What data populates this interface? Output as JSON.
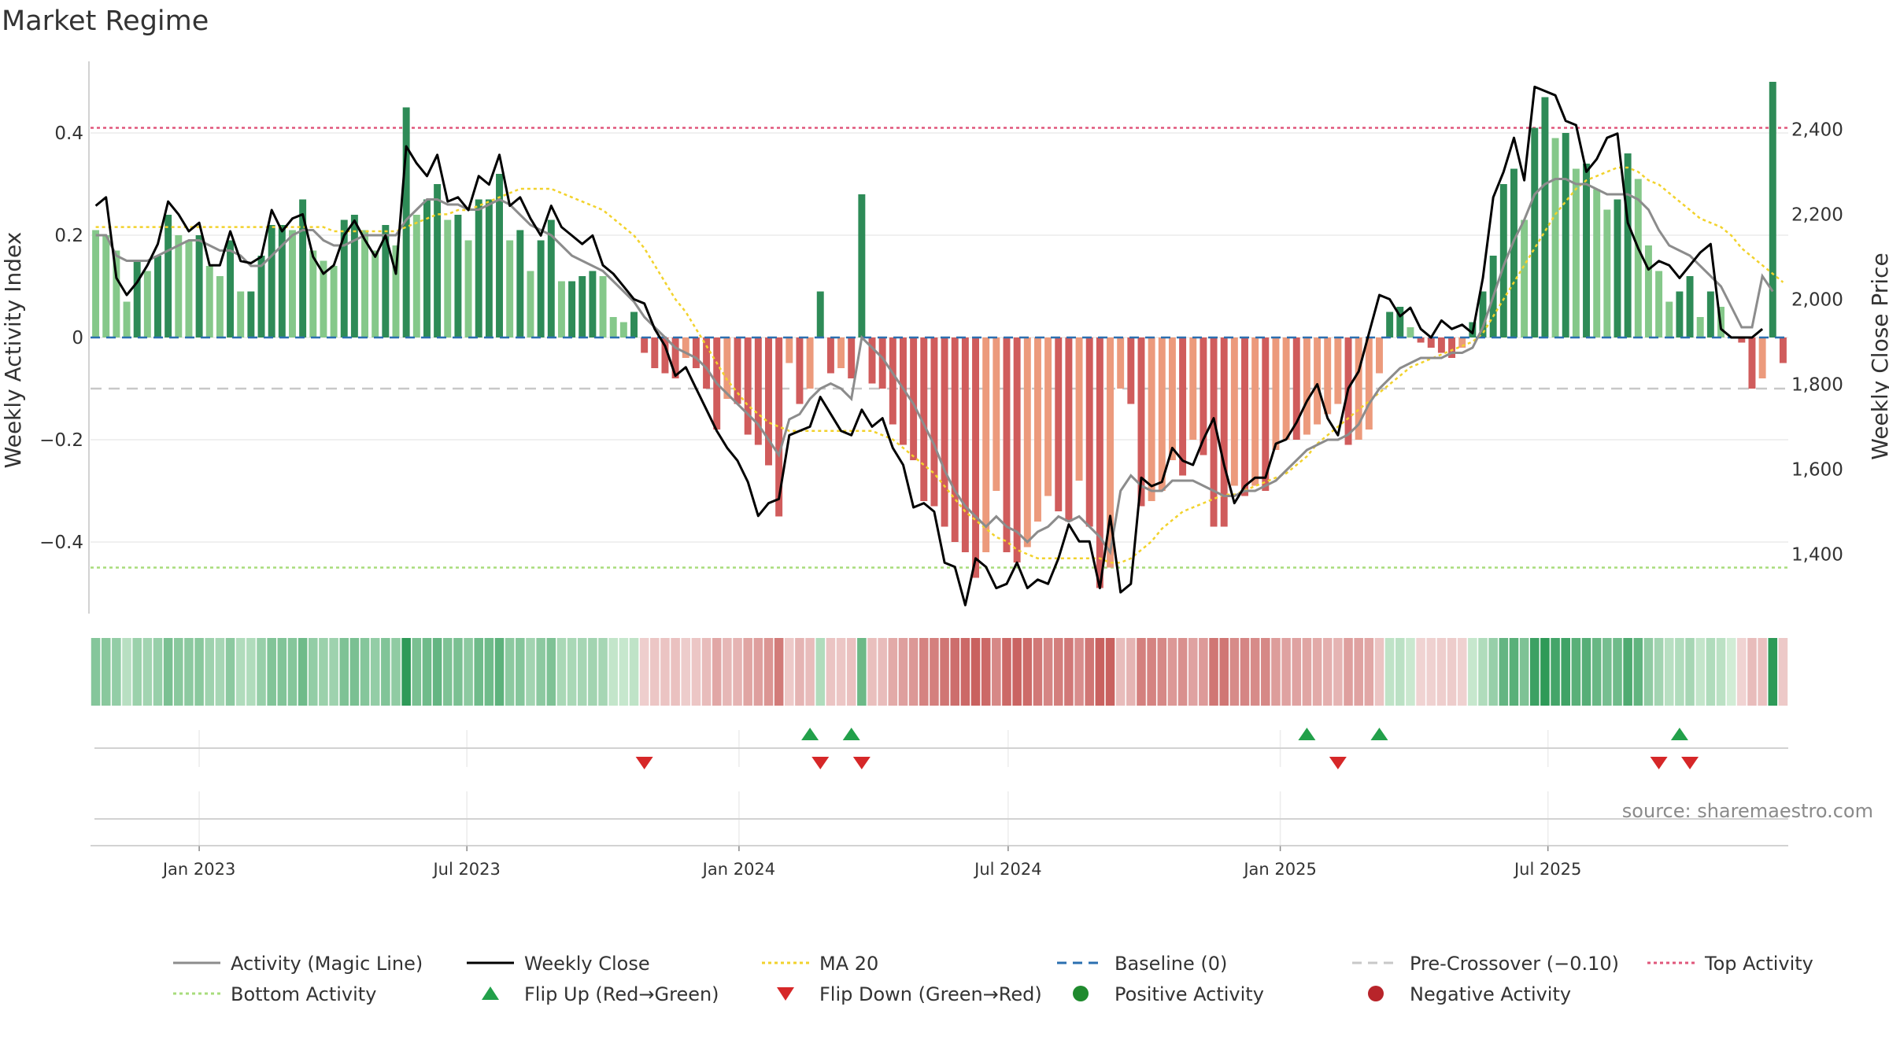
{
  "chart_data": {
    "type": "bar",
    "title": "Market Regime",
    "ylabel_left": "Weekly Activity Index",
    "ylabel_right": "Weekly Close Price",
    "ylim_left": [
      -0.54,
      0.54
    ],
    "ylim_right": [
      1260,
      2560
    ],
    "yticks_left": [
      {
        "v": 0.4,
        "label": "0.4"
      },
      {
        "v": 0.2,
        "label": "0.2"
      },
      {
        "v": 0,
        "label": "0"
      },
      {
        "v": -0.2,
        "label": "−0.2"
      },
      {
        "v": -0.4,
        "label": "−0.4"
      }
    ],
    "yticks_right": [
      {
        "v": 2400,
        "label": "2,400"
      },
      {
        "v": 2200,
        "label": "2,200"
      },
      {
        "v": 2000,
        "label": "2,000"
      },
      {
        "v": 1800,
        "label": "1,800"
      },
      {
        "v": 1600,
        "label": "1,600"
      },
      {
        "v": 1400,
        "label": "1,400"
      }
    ],
    "x_start": "2022-10-23",
    "x_step_days": 7,
    "xticks": [
      {
        "date": "2023-01-01",
        "label": "Jan 2023"
      },
      {
        "date": "2023-07-01",
        "label": "Jul 2023"
      },
      {
        "date": "2024-01-01",
        "label": "Jan 2024"
      },
      {
        "date": "2024-07-01",
        "label": "Jul 2024"
      },
      {
        "date": "2025-01-01",
        "label": "Jan 2025"
      },
      {
        "date": "2025-07-01",
        "label": "Jul 2025"
      }
    ],
    "thresholds": {
      "top": 0.41,
      "bottom": -0.45,
      "pre_crossover": -0.1,
      "baseline": 0
    },
    "activity": [
      0.21,
      0.2,
      0.17,
      0.07,
      0.15,
      0.13,
      0.16,
      0.24,
      0.2,
      0.19,
      0.2,
      0.14,
      0.12,
      0.19,
      0.09,
      0.09,
      0.16,
      0.22,
      0.22,
      0.21,
      0.27,
      0.17,
      0.15,
      0.14,
      0.23,
      0.24,
      0.21,
      0.17,
      0.22,
      0.18,
      0.45,
      0.24,
      0.27,
      0.3,
      0.23,
      0.24,
      0.19,
      0.27,
      0.27,
      0.32,
      0.19,
      0.21,
      0.13,
      0.19,
      0.23,
      0.11,
      0.11,
      0.12,
      0.13,
      0.12,
      0.04,
      0.03,
      0.05,
      -0.03,
      -0.06,
      -0.07,
      -0.08,
      -0.04,
      -0.06,
      -0.1,
      -0.18,
      -0.12,
      -0.13,
      -0.19,
      -0.21,
      -0.25,
      -0.35,
      -0.05,
      -0.13,
      -0.1,
      0.09,
      -0.07,
      -0.06,
      -0.08,
      0.28,
      -0.09,
      -0.1,
      -0.17,
      -0.21,
      -0.24,
      -0.32,
      -0.33,
      -0.37,
      -0.4,
      -0.42,
      -0.47,
      -0.42,
      -0.3,
      -0.42,
      -0.44,
      -0.41,
      -0.36,
      -0.31,
      -0.34,
      -0.36,
      -0.28,
      -0.37,
      -0.49,
      -0.45,
      -0.1,
      -0.13,
      -0.33,
      -0.32,
      -0.3,
      -0.24,
      -0.27,
      -0.2,
      -0.23,
      -0.37,
      -0.37,
      -0.29,
      -0.31,
      -0.29,
      -0.3,
      -0.22,
      -0.2,
      -0.2,
      -0.19,
      -0.17,
      -0.15,
      -0.13,
      -0.21,
      -0.2,
      -0.18,
      -0.07,
      0.05,
      0.06,
      0.02,
      -0.01,
      -0.02,
      -0.03,
      -0.04,
      -0.02,
      0.03,
      0.09,
      0.16,
      0.3,
      0.33,
      0.23,
      0.41,
      0.47,
      0.39,
      0.4,
      0.33,
      0.34,
      0.29,
      0.25,
      0.27,
      0.36,
      0.31,
      0.18,
      0.13,
      0.07,
      0.09,
      0.12,
      0.04,
      0.09,
      0.06,
      0.0,
      -0.01,
      -0.1,
      -0.08,
      0.5,
      -0.05
    ],
    "weekly_close": [
      2220,
      2240,
      2050,
      2010,
      2040,
      2080,
      2130,
      2230,
      2200,
      2160,
      2180,
      2080,
      2080,
      2160,
      2090,
      2085,
      2100,
      2210,
      2160,
      2190,
      2200,
      2100,
      2060,
      2080,
      2150,
      2185,
      2140,
      2100,
      2150,
      2060,
      2360,
      2320,
      2290,
      2340,
      2230,
      2240,
      2210,
      2290,
      2270,
      2340,
      2220,
      2240,
      2190,
      2150,
      2220,
      2170,
      2150,
      2130,
      2150,
      2080,
      2060,
      2030,
      2000,
      1990,
      1930,
      1890,
      1820,
      1840,
      1790,
      1740,
      1690,
      1650,
      1620,
      1570,
      1490,
      1520,
      1530,
      1680,
      1690,
      1700,
      1770,
      1730,
      1690,
      1680,
      1740,
      1700,
      1720,
      1650,
      1610,
      1510,
      1520,
      1500,
      1380,
      1370,
      1280,
      1390,
      1370,
      1320,
      1330,
      1380,
      1320,
      1340,
      1330,
      1390,
      1470,
      1430,
      1430,
      1320,
      1490,
      1310,
      1330,
      1580,
      1560,
      1570,
      1650,
      1620,
      1610,
      1670,
      1720,
      1610,
      1520,
      1560,
      1580,
      1580,
      1660,
      1670,
      1710,
      1760,
      1800,
      1720,
      1680,
      1790,
      1830,
      1920,
      2010,
      2000,
      1960,
      1980,
      1930,
      1910,
      1950,
      1930,
      1940,
      1920,
      2050,
      2240,
      2300,
      2380,
      2280,
      2500,
      2490,
      2480,
      2420,
      2410,
      2300,
      2330,
      2380,
      2390,
      2180,
      2120,
      2070,
      2090,
      2080,
      2050,
      2080,
      2110,
      2130,
      1930,
      1910,
      1910,
      1910,
      1930
    ],
    "magic_line": [
      0.2,
      0.2,
      0.16,
      0.15,
      0.15,
      0.15,
      0.16,
      0.17,
      0.18,
      0.19,
      0.19,
      0.18,
      0.17,
      0.17,
      0.16,
      0.14,
      0.14,
      0.16,
      0.18,
      0.2,
      0.21,
      0.21,
      0.19,
      0.18,
      0.18,
      0.19,
      0.2,
      0.2,
      0.2,
      0.2,
      0.23,
      0.25,
      0.27,
      0.27,
      0.26,
      0.26,
      0.25,
      0.25,
      0.26,
      0.27,
      0.26,
      0.24,
      0.22,
      0.21,
      0.2,
      0.18,
      0.16,
      0.15,
      0.14,
      0.13,
      0.11,
      0.09,
      0.07,
      0.04,
      0.02,
      0.0,
      -0.02,
      -0.03,
      -0.04,
      -0.06,
      -0.09,
      -0.11,
      -0.13,
      -0.15,
      -0.17,
      -0.2,
      -0.23,
      -0.16,
      -0.15,
      -0.12,
      -0.1,
      -0.09,
      -0.1,
      -0.12,
      0.0,
      -0.02,
      -0.04,
      -0.07,
      -0.1,
      -0.13,
      -0.17,
      -0.21,
      -0.26,
      -0.3,
      -0.33,
      -0.35,
      -0.37,
      -0.35,
      -0.37,
      -0.38,
      -0.4,
      -0.38,
      -0.37,
      -0.35,
      -0.36,
      -0.35,
      -0.37,
      -0.39,
      -0.42,
      -0.3,
      -0.27,
      -0.29,
      -0.3,
      -0.3,
      -0.28,
      -0.28,
      -0.28,
      -0.29,
      -0.3,
      -0.31,
      -0.31,
      -0.3,
      -0.3,
      -0.29,
      -0.28,
      -0.26,
      -0.24,
      -0.22,
      -0.21,
      -0.2,
      -0.2,
      -0.19,
      -0.17,
      -0.13,
      -0.1,
      -0.08,
      -0.06,
      -0.05,
      -0.04,
      -0.04,
      -0.04,
      -0.03,
      -0.03,
      -0.02,
      0.02,
      0.08,
      0.14,
      0.19,
      0.23,
      0.28,
      0.3,
      0.31,
      0.31,
      0.3,
      0.3,
      0.29,
      0.28,
      0.28,
      0.28,
      0.27,
      0.25,
      0.21,
      0.18,
      0.17,
      0.16,
      0.14,
      0.12,
      0.1,
      0.06,
      0.02,
      0.02,
      0.12,
      0.09
    ],
    "ma20": [
      2170,
      2170,
      2170,
      2170,
      2170,
      2170,
      2170,
      2170,
      2170,
      2170,
      2170,
      2170,
      2170,
      2170,
      2170,
      2170,
      2170,
      2170,
      2170,
      2170,
      2170,
      2170,
      2170,
      2160,
      2160,
      2160,
      2160,
      2160,
      2160,
      2160,
      2170,
      2180,
      2190,
      2200,
      2200,
      2210,
      2210,
      2220,
      2230,
      2240,
      2250,
      2260,
      2260,
      2260,
      2260,
      2250,
      2240,
      2230,
      2220,
      2210,
      2190,
      2170,
      2150,
      2120,
      2080,
      2040,
      2000,
      1970,
      1930,
      1890,
      1850,
      1810,
      1780,
      1750,
      1730,
      1710,
      1700,
      1690,
      1690,
      1690,
      1690,
      1690,
      1690,
      1690,
      1690,
      1690,
      1680,
      1670,
      1650,
      1630,
      1610,
      1590,
      1560,
      1530,
      1500,
      1480,
      1460,
      1440,
      1430,
      1410,
      1400,
      1390,
      1390,
      1390,
      1390,
      1390,
      1390,
      1390,
      1380,
      1380,
      1390,
      1410,
      1430,
      1460,
      1480,
      1500,
      1510,
      1520,
      1530,
      1540,
      1540,
      1550,
      1560,
      1570,
      1580,
      1590,
      1610,
      1630,
      1660,
      1680,
      1700,
      1720,
      1740,
      1760,
      1780,
      1800,
      1820,
      1840,
      1850,
      1860,
      1870,
      1880,
      1890,
      1900,
      1920,
      1960,
      2000,
      2040,
      2080,
      2120,
      2160,
      2200,
      2230,
      2260,
      2280,
      2290,
      2300,
      2310,
      2310,
      2300,
      2280,
      2270,
      2250,
      2230,
      2210,
      2190,
      2180,
      2170,
      2150,
      2120,
      2100,
      2080,
      2060,
      2040
    ],
    "flip_up_dates": [
      "2024-02-18",
      "2024-03-17",
      "2025-01-19",
      "2025-03-09",
      "2025-09-28"
    ],
    "flip_down_dates": [
      "2023-10-29",
      "2024-02-25",
      "2024-03-24",
      "2025-02-09",
      "2025-09-14",
      "2025-10-05"
    ],
    "colors": {
      "strong_up": "#2e8b57",
      "weak_up": "#85c88a",
      "strong_down": "#d05c5c",
      "weak_down": "#ec9a7c",
      "heat_pos_hi": "#2e9a58",
      "heat_pos_lo": "#d1ecd5",
      "heat_neg_lo": "#f1d6d5",
      "heat_neg_hi": "#c9615f",
      "magic_line": "#8c8c8c",
      "close": "#000000",
      "ma20": "#f2d22c",
      "baseline": "#2b6fb0",
      "pre_crossover": "#c8c8c8",
      "top": "#e0577b",
      "bottom": "#a8dc7c",
      "flip_up": "#22a04a",
      "flip_down": "#d62728",
      "positive": "#1f8a2e",
      "negative": "#b8242a"
    },
    "legend": [
      {
        "key": "magic",
        "label": "Activity (Magic Line)",
        "kind": "line",
        "color": "#8c8c8c",
        "dash": ""
      },
      {
        "key": "close",
        "label": "Weekly Close",
        "kind": "line",
        "color": "#000000",
        "dash": ""
      },
      {
        "key": "ma20",
        "label": "MA 20",
        "kind": "line",
        "color": "#f2d22c",
        "dash": "4 4"
      },
      {
        "key": "baseline",
        "label": "Baseline (0)",
        "kind": "line",
        "color": "#2b6fb0",
        "dash": "12 8"
      },
      {
        "key": "pre",
        "label": "Pre-Crossover (−0.10)",
        "kind": "line",
        "color": "#c8c8c8",
        "dash": "12 8"
      },
      {
        "key": "top",
        "label": "Top Activity",
        "kind": "line",
        "color": "#e0577b",
        "dash": "4 4"
      },
      {
        "key": "bottom",
        "label": "Bottom Activity",
        "kind": "line",
        "color": "#a8dc7c",
        "dash": "4 4"
      },
      {
        "key": "flipup",
        "label": "Flip Up (Red→Green)",
        "kind": "tri-up",
        "color": "#22a04a"
      },
      {
        "key": "flipdown",
        "label": "Flip Down (Green→Red)",
        "kind": "tri-down",
        "color": "#d62728"
      },
      {
        "key": "positive",
        "label": "Positive Activity",
        "kind": "dot",
        "color": "#1f8a2e"
      },
      {
        "key": "negative",
        "label": "Negative Activity",
        "kind": "dot",
        "color": "#b8242a"
      }
    ],
    "source": "source: sharemaestro.com"
  }
}
